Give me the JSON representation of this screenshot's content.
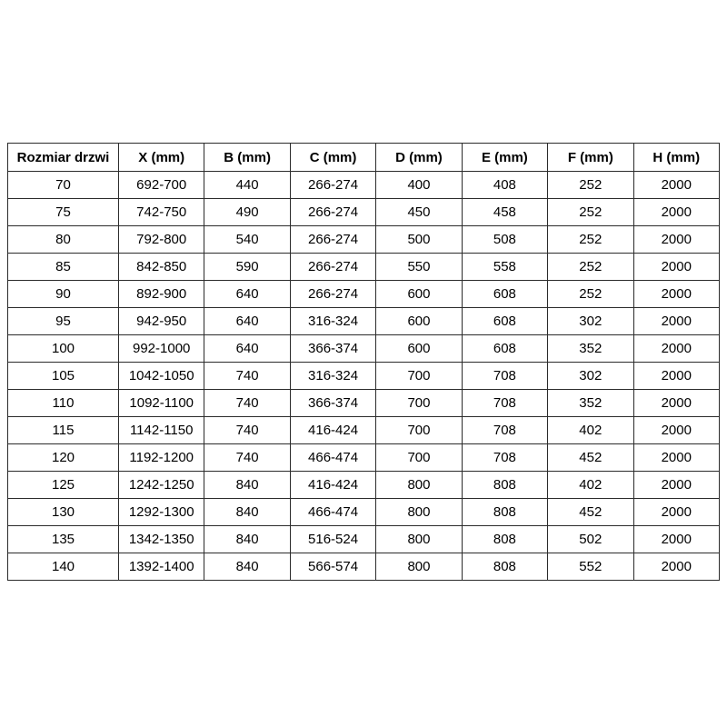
{
  "page": {
    "background_color": "#ffffff",
    "text_color": "#000000",
    "border_color": "#2b2b2b"
  },
  "table": {
    "columns": [
      "Rozmiar drzwi",
      "X (mm)",
      "B (mm)",
      "C (mm)",
      "D (mm)",
      "E (mm)",
      "F (mm)",
      "H (mm)"
    ],
    "rows": [
      [
        "70",
        "692-700",
        "440",
        "266-274",
        "400",
        "408",
        "252",
        "2000"
      ],
      [
        "75",
        "742-750",
        "490",
        "266-274",
        "450",
        "458",
        "252",
        "2000"
      ],
      [
        "80",
        "792-800",
        "540",
        "266-274",
        "500",
        "508",
        "252",
        "2000"
      ],
      [
        "85",
        "842-850",
        "590",
        "266-274",
        "550",
        "558",
        "252",
        "2000"
      ],
      [
        "90",
        "892-900",
        "640",
        "266-274",
        "600",
        "608",
        "252",
        "2000"
      ],
      [
        "95",
        "942-950",
        "640",
        "316-324",
        "600",
        "608",
        "302",
        "2000"
      ],
      [
        "100",
        "992-1000",
        "640",
        "366-374",
        "600",
        "608",
        "352",
        "2000"
      ],
      [
        "105",
        "1042-1050",
        "740",
        "316-324",
        "700",
        "708",
        "302",
        "2000"
      ],
      [
        "110",
        "1092-1100",
        "740",
        "366-374",
        "700",
        "708",
        "352",
        "2000"
      ],
      [
        "115",
        "1142-1150",
        "740",
        "416-424",
        "700",
        "708",
        "402",
        "2000"
      ],
      [
        "120",
        "1192-1200",
        "740",
        "466-474",
        "700",
        "708",
        "452",
        "2000"
      ],
      [
        "125",
        "1242-1250",
        "840",
        "416-424",
        "800",
        "808",
        "402",
        "2000"
      ],
      [
        "130",
        "1292-1300",
        "840",
        "466-474",
        "800",
        "808",
        "452",
        "2000"
      ],
      [
        "135",
        "1342-1350",
        "840",
        "516-524",
        "800",
        "808",
        "502",
        "2000"
      ],
      [
        "140",
        "1392-1400",
        "840",
        "566-574",
        "800",
        "808",
        "552",
        "2000"
      ]
    ]
  }
}
